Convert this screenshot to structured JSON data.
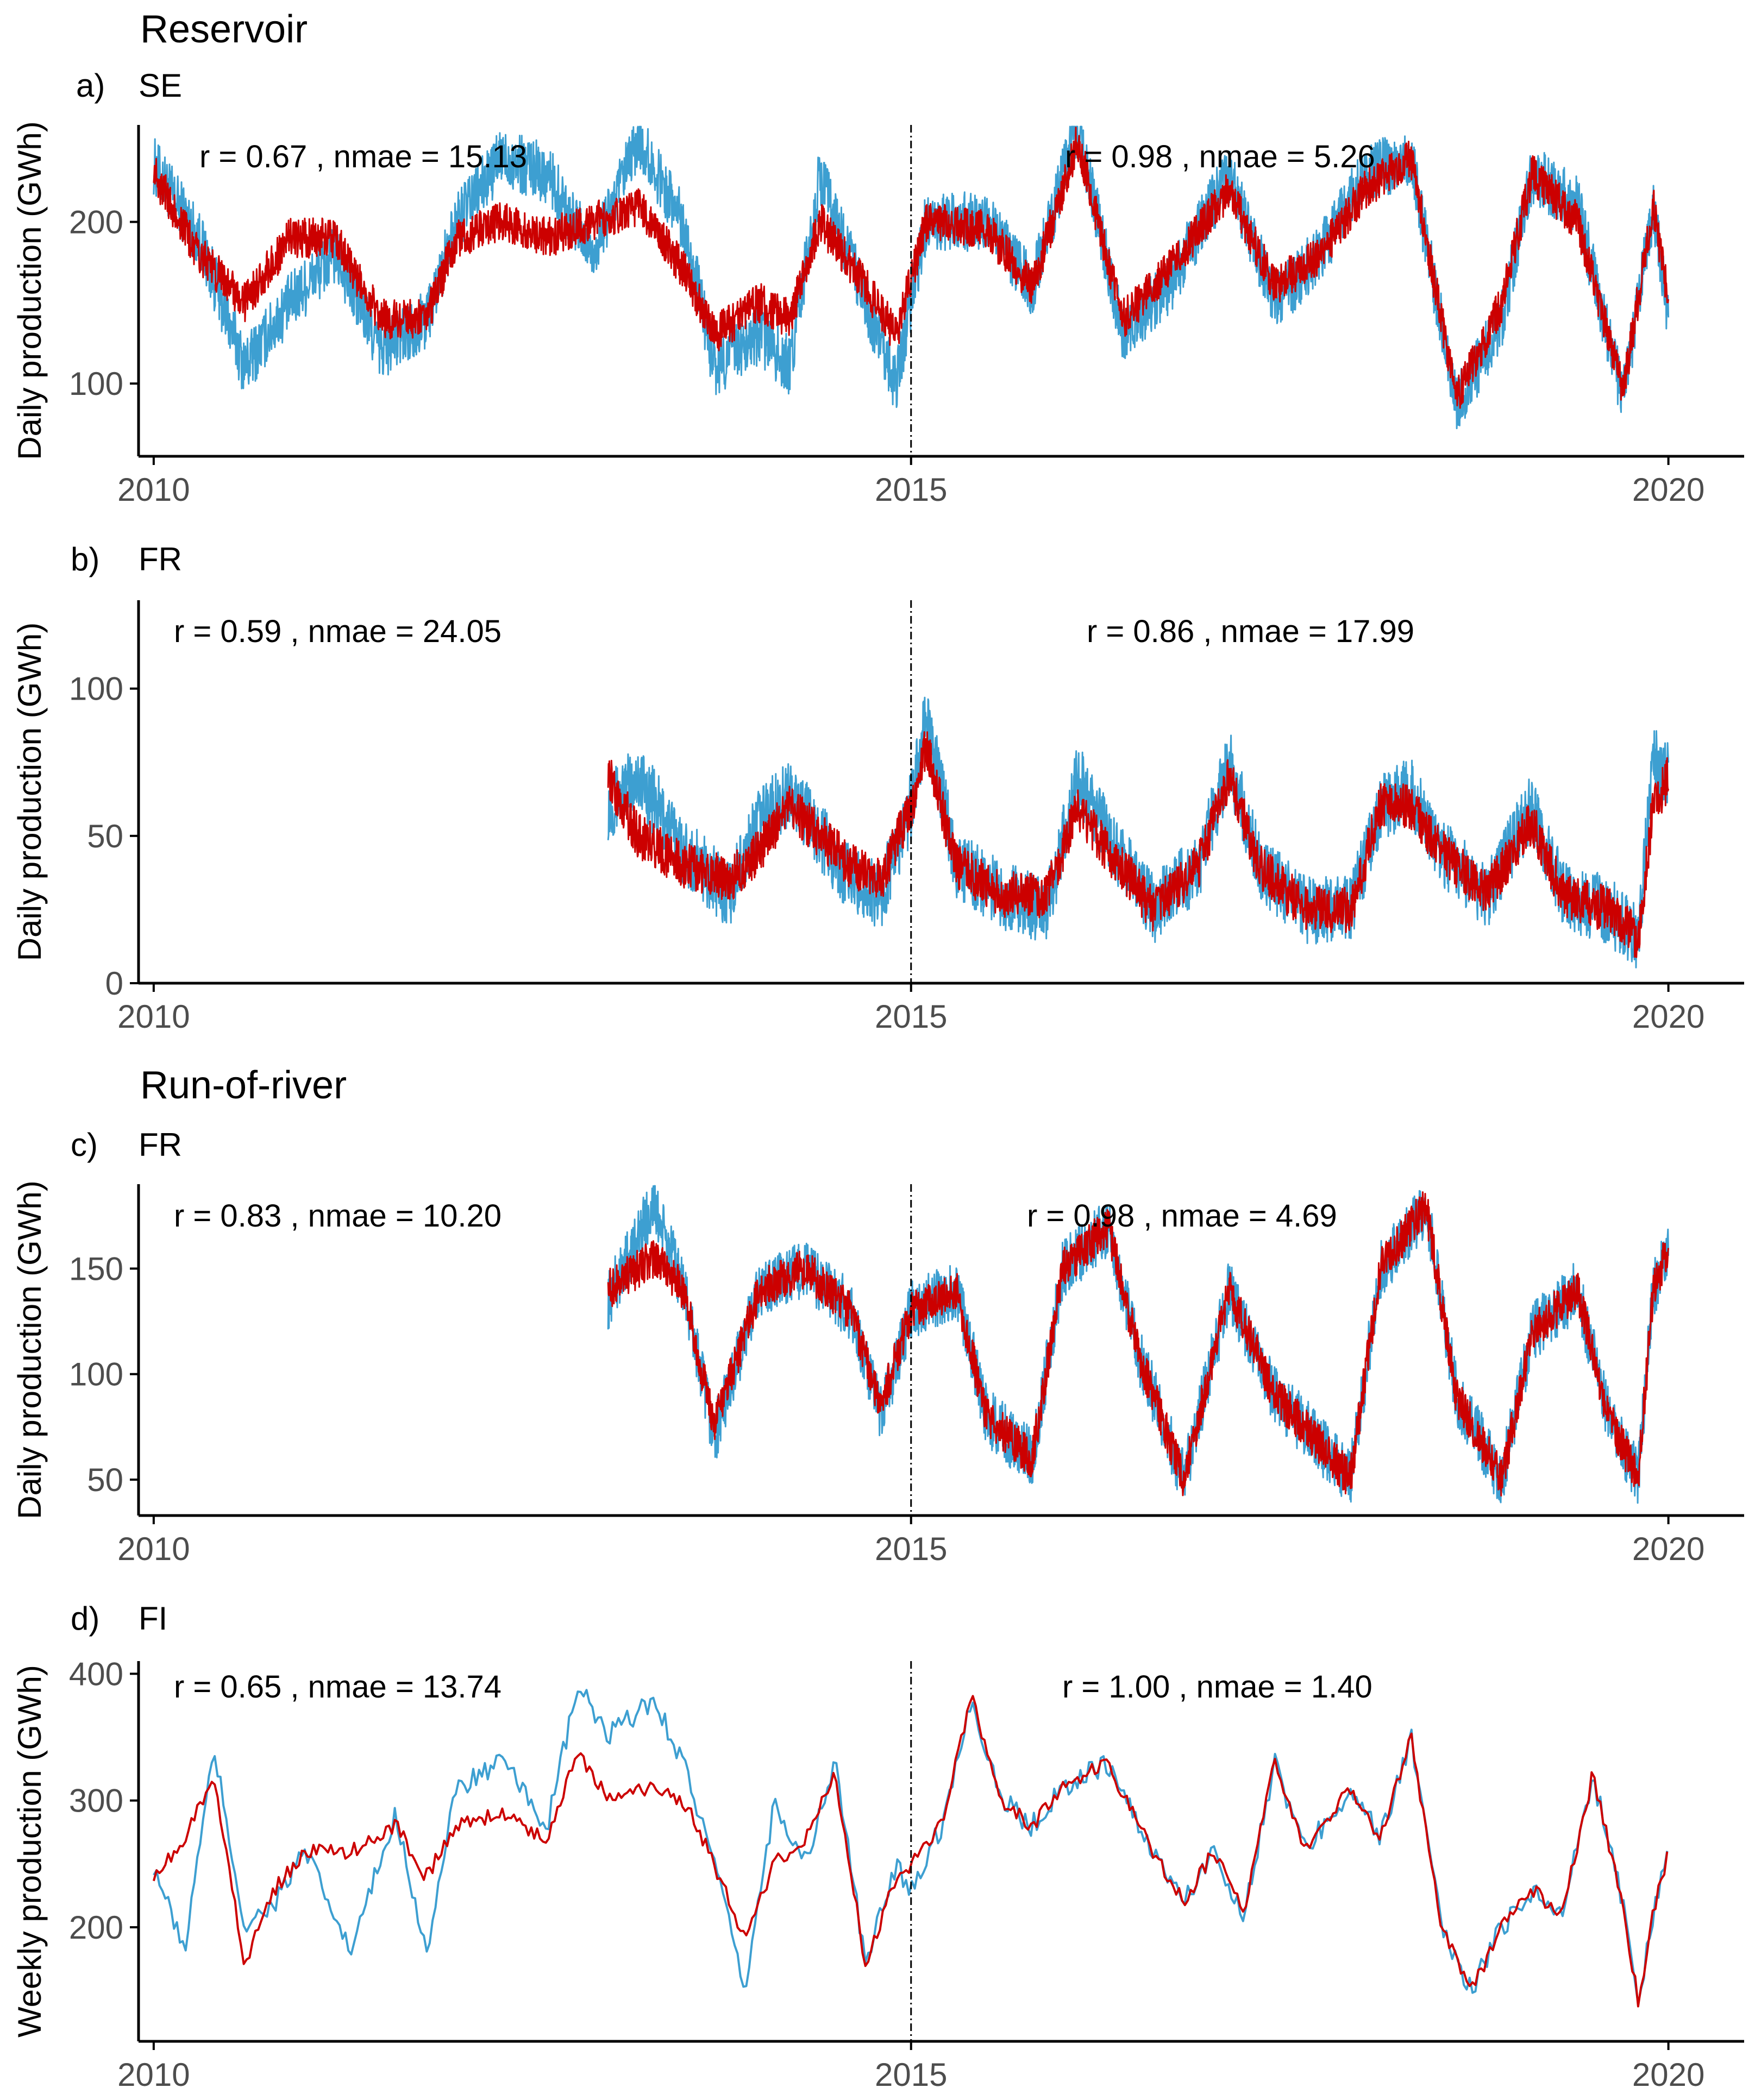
{
  "sections": {
    "reservoir": "Reservoir",
    "run_of_river": "Run-of-river"
  },
  "colors": {
    "observed": "#3d9fd1",
    "simulated": "#cc0000",
    "axis": "#000000",
    "tick_label": "#4d4d4d",
    "split_line": "#000000"
  },
  "chart_data": [
    {
      "type": "line",
      "panel_letter": "a)",
      "region": "SE",
      "ylabel": "Daily production (GWh)",
      "xlim": [
        2009.9,
        2020.5
      ],
      "ylim": [
        55,
        260
      ],
      "xticks": [
        2010,
        2015,
        2020
      ],
      "yticks": [
        100,
        200
      ],
      "split_x": 2015,
      "annotations": [
        "r = 0.67 , nmae = 15.13",
        "r = 0.98  , nmae = 5.26"
      ],
      "observed_anchors": [
        [
          2010.0,
          235
        ],
        [
          2010.3,
          190
        ],
        [
          2010.6,
          110
        ],
        [
          2010.9,
          150
        ],
        [
          2011.2,
          180
        ],
        [
          2011.5,
          120
        ],
        [
          2011.8,
          140
        ],
        [
          2012.0,
          200
        ],
        [
          2012.3,
          240
        ],
        [
          2012.6,
          230
        ],
        [
          2012.9,
          180
        ],
        [
          2013.2,
          250
        ],
        [
          2013.5,
          200
        ],
        [
          2013.7,
          110
        ],
        [
          2014.0,
          130
        ],
        [
          2014.2,
          110
        ],
        [
          2014.4,
          230
        ],
        [
          2014.7,
          150
        ],
        [
          2014.9,
          100
        ],
        [
          2015.1,
          200
        ],
        [
          2015.5,
          200
        ],
        [
          2015.8,
          160
        ],
        [
          2016.1,
          260
        ],
        [
          2016.4,
          130
        ],
        [
          2016.7,
          160
        ],
        [
          2017.1,
          230
        ],
        [
          2017.4,
          150
        ],
        [
          2017.7,
          180
        ],
        [
          2018.0,
          230
        ],
        [
          2018.3,
          240
        ],
        [
          2018.6,
          85
        ],
        [
          2018.9,
          140
        ],
        [
          2019.1,
          230
        ],
        [
          2019.4,
          210
        ],
        [
          2019.7,
          90
        ],
        [
          2019.9,
          210
        ],
        [
          2020.0,
          140
        ]
      ],
      "simulated_anchors": [
        [
          2010.0,
          230
        ],
        [
          2010.3,
          180
        ],
        [
          2010.6,
          150
        ],
        [
          2010.9,
          190
        ],
        [
          2011.2,
          190
        ],
        [
          2011.5,
          140
        ],
        [
          2011.8,
          140
        ],
        [
          2012.0,
          190
        ],
        [
          2012.3,
          200
        ],
        [
          2012.6,
          190
        ],
        [
          2012.9,
          200
        ],
        [
          2013.2,
          210
        ],
        [
          2013.5,
          170
        ],
        [
          2013.7,
          130
        ],
        [
          2014.0,
          150
        ],
        [
          2014.2,
          140
        ],
        [
          2014.4,
          200
        ],
        [
          2014.7,
          160
        ],
        [
          2014.9,
          130
        ],
        [
          2015.1,
          200
        ],
        [
          2015.5,
          195
        ],
        [
          2015.8,
          160
        ],
        [
          2016.1,
          250
        ],
        [
          2016.4,
          140
        ],
        [
          2016.7,
          170
        ],
        [
          2017.1,
          220
        ],
        [
          2017.4,
          160
        ],
        [
          2017.7,
          180
        ],
        [
          2018.0,
          220
        ],
        [
          2018.3,
          240
        ],
        [
          2018.6,
          90
        ],
        [
          2018.9,
          150
        ],
        [
          2019.1,
          230
        ],
        [
          2019.4,
          200
        ],
        [
          2019.7,
          95
        ],
        [
          2019.9,
          210
        ],
        [
          2020.0,
          150
        ]
      ]
    },
    {
      "type": "line",
      "panel_letter": "b)",
      "region": "FR",
      "ylabel": "Daily production (GWh)",
      "xlim": [
        2009.9,
        2020.5
      ],
      "ylim": [
        0,
        130
      ],
      "xticks": [
        2010,
        2015,
        2020
      ],
      "yticks": [
        0,
        50,
        100
      ],
      "split_x": 2015,
      "annotations": [
        "r = 0.59 , nmae = 24.05",
        "r = 0.86     , nmae = 17.99"
      ],
      "observed_anchors": [
        [
          2013.0,
          60
        ],
        [
          2013.2,
          70
        ],
        [
          2013.5,
          45
        ],
        [
          2013.8,
          30
        ],
        [
          2014.0,
          55
        ],
        [
          2014.2,
          65
        ],
        [
          2014.4,
          50
        ],
        [
          2014.6,
          35
        ],
        [
          2014.8,
          30
        ],
        [
          2015.0,
          60
        ],
        [
          2015.1,
          90
        ],
        [
          2015.3,
          40
        ],
        [
          2015.6,
          30
        ],
        [
          2015.9,
          25
        ],
        [
          2016.1,
          70
        ],
        [
          2016.3,
          50
        ],
        [
          2016.6,
          25
        ],
        [
          2016.9,
          40
        ],
        [
          2017.1,
          75
        ],
        [
          2017.3,
          40
        ],
        [
          2017.6,
          25
        ],
        [
          2017.9,
          25
        ],
        [
          2018.1,
          60
        ],
        [
          2018.3,
          65
        ],
        [
          2018.5,
          45
        ],
        [
          2018.8,
          30
        ],
        [
          2019.1,
          60
        ],
        [
          2019.3,
          30
        ],
        [
          2019.6,
          25
        ],
        [
          2019.8,
          15
        ],
        [
          2019.9,
          75
        ],
        [
          2020.0,
          70
        ]
      ],
      "simulated_anchors": [
        [
          2013.0,
          70
        ],
        [
          2013.2,
          50
        ],
        [
          2013.5,
          40
        ],
        [
          2013.8,
          35
        ],
        [
          2014.0,
          45
        ],
        [
          2014.2,
          60
        ],
        [
          2014.4,
          50
        ],
        [
          2014.6,
          40
        ],
        [
          2014.8,
          35
        ],
        [
          2015.0,
          60
        ],
        [
          2015.1,
          80
        ],
        [
          2015.3,
          40
        ],
        [
          2015.6,
          30
        ],
        [
          2015.9,
          30
        ],
        [
          2016.1,
          60
        ],
        [
          2016.3,
          45
        ],
        [
          2016.6,
          25
        ],
        [
          2016.9,
          40
        ],
        [
          2017.1,
          70
        ],
        [
          2017.3,
          40
        ],
        [
          2017.6,
          25
        ],
        [
          2017.9,
          25
        ],
        [
          2018.1,
          60
        ],
        [
          2018.3,
          60
        ],
        [
          2018.5,
          45
        ],
        [
          2018.8,
          30
        ],
        [
          2019.1,
          55
        ],
        [
          2019.3,
          30
        ],
        [
          2019.6,
          25
        ],
        [
          2019.8,
          15
        ],
        [
          2019.9,
          60
        ],
        [
          2020.0,
          70
        ]
      ]
    },
    {
      "type": "line",
      "panel_letter": "c)",
      "region": "FR",
      "ylabel": "Daily production (GWh)",
      "xlim": [
        2009.9,
        2020.5
      ],
      "ylim": [
        33,
        190
      ],
      "xticks": [
        2010,
        2015,
        2020
      ],
      "yticks": [
        50,
        100,
        150
      ],
      "split_x": 2015,
      "annotations": [
        "r = 0.83 , nmae = 10.20",
        "r = 0.98 , nmae = 4.69"
      ],
      "observed_anchors": [
        [
          2013.0,
          135
        ],
        [
          2013.3,
          180
        ],
        [
          2013.5,
          140
        ],
        [
          2013.7,
          70
        ],
        [
          2014.0,
          140
        ],
        [
          2014.3,
          150
        ],
        [
          2014.6,
          130
        ],
        [
          2014.8,
          80
        ],
        [
          2015.0,
          130
        ],
        [
          2015.3,
          140
        ],
        [
          2015.5,
          80
        ],
        [
          2015.8,
          60
        ],
        [
          2016.0,
          150
        ],
        [
          2016.3,
          170
        ],
        [
          2016.5,
          110
        ],
        [
          2016.8,
          50
        ],
        [
          2017.1,
          140
        ],
        [
          2017.4,
          90
        ],
        [
          2017.6,
          75
        ],
        [
          2017.9,
          50
        ],
        [
          2018.1,
          150
        ],
        [
          2018.4,
          180
        ],
        [
          2018.6,
          90
        ],
        [
          2018.9,
          50
        ],
        [
          2019.1,
          120
        ],
        [
          2019.4,
          140
        ],
        [
          2019.6,
          80
        ],
        [
          2019.8,
          50
        ],
        [
          2019.9,
          140
        ],
        [
          2020.0,
          160
        ]
      ],
      "simulated_anchors": [
        [
          2013.0,
          140
        ],
        [
          2013.3,
          155
        ],
        [
          2013.5,
          140
        ],
        [
          2013.7,
          75
        ],
        [
          2014.0,
          140
        ],
        [
          2014.3,
          150
        ],
        [
          2014.6,
          130
        ],
        [
          2014.8,
          85
        ],
        [
          2015.0,
          130
        ],
        [
          2015.3,
          140
        ],
        [
          2015.5,
          80
        ],
        [
          2015.8,
          60
        ],
        [
          2016.0,
          150
        ],
        [
          2016.3,
          170
        ],
        [
          2016.5,
          110
        ],
        [
          2016.8,
          50
        ],
        [
          2017.1,
          140
        ],
        [
          2017.4,
          90
        ],
        [
          2017.6,
          75
        ],
        [
          2017.9,
          50
        ],
        [
          2018.1,
          150
        ],
        [
          2018.4,
          180
        ],
        [
          2018.6,
          90
        ],
        [
          2018.9,
          50
        ],
        [
          2019.1,
          120
        ],
        [
          2019.4,
          140
        ],
        [
          2019.6,
          80
        ],
        [
          2019.8,
          50
        ],
        [
          2019.9,
          140
        ],
        [
          2020.0,
          160
        ]
      ]
    },
    {
      "type": "line",
      "panel_letter": "d)",
      "region": "FI",
      "ylabel": "Weekly production (GWh)",
      "xlim": [
        2009.9,
        2020.5
      ],
      "ylim": [
        110,
        410
      ],
      "xticks": [
        2010,
        2015,
        2020
      ],
      "yticks": [
        200,
        300,
        400
      ],
      "split_x": 2015,
      "annotations": [
        "r = 0.65 , nmae = 13.74",
        "r = 1.00  , nmae = 1.40"
      ],
      "observed_anchors": [
        [
          2010.0,
          250
        ],
        [
          2010.2,
          180
        ],
        [
          2010.4,
          340
        ],
        [
          2010.6,
          200
        ],
        [
          2010.8,
          220
        ],
        [
          2011.0,
          260
        ],
        [
          2011.3,
          180
        ],
        [
          2011.6,
          290
        ],
        [
          2011.8,
          180
        ],
        [
          2012.0,
          310
        ],
        [
          2012.3,
          330
        ],
        [
          2012.6,
          280
        ],
        [
          2012.8,
          390
        ],
        [
          2013.0,
          350
        ],
        [
          2013.3,
          380
        ],
        [
          2013.5,
          330
        ],
        [
          2013.7,
          250
        ],
        [
          2013.9,
          150
        ],
        [
          2014.1,
          300
        ],
        [
          2014.3,
          250
        ],
        [
          2014.5,
          330
        ],
        [
          2014.7,
          170
        ],
        [
          2014.9,
          250
        ],
        [
          2015.0,
          230
        ],
        [
          2015.2,
          280
        ],
        [
          2015.4,
          380
        ],
        [
          2015.6,
          300
        ],
        [
          2015.8,
          280
        ],
        [
          2016.0,
          310
        ],
        [
          2016.3,
          330
        ],
        [
          2016.5,
          280
        ],
        [
          2016.8,
          220
        ],
        [
          2017.0,
          260
        ],
        [
          2017.2,
          210
        ],
        [
          2017.4,
          330
        ],
        [
          2017.6,
          260
        ],
        [
          2017.9,
          310
        ],
        [
          2018.1,
          270
        ],
        [
          2018.3,
          350
        ],
        [
          2018.5,
          200
        ],
        [
          2018.7,
          150
        ],
        [
          2018.9,
          200
        ],
        [
          2019.1,
          230
        ],
        [
          2019.3,
          210
        ],
        [
          2019.5,
          320
        ],
        [
          2019.7,
          220
        ],
        [
          2019.8,
          140
        ],
        [
          2019.9,
          210
        ],
        [
          2020.0,
          260
        ]
      ],
      "simulated_anchors": [
        [
          2010.0,
          240
        ],
        [
          2010.2,
          270
        ],
        [
          2010.4,
          320
        ],
        [
          2010.6,
          170
        ],
        [
          2010.8,
          230
        ],
        [
          2011.0,
          260
        ],
        [
          2011.3,
          260
        ],
        [
          2011.6,
          280
        ],
        [
          2011.8,
          240
        ],
        [
          2012.0,
          280
        ],
        [
          2012.3,
          290
        ],
        [
          2012.6,
          270
        ],
        [
          2012.8,
          340
        ],
        [
          2013.0,
          300
        ],
        [
          2013.3,
          310
        ],
        [
          2013.5,
          300
        ],
        [
          2013.7,
          250
        ],
        [
          2013.9,
          190
        ],
        [
          2014.1,
          250
        ],
        [
          2014.3,
          270
        ],
        [
          2014.5,
          320
        ],
        [
          2014.7,
          170
        ],
        [
          2014.9,
          240
        ],
        [
          2015.0,
          250
        ],
        [
          2015.2,
          280
        ],
        [
          2015.4,
          380
        ],
        [
          2015.6,
          300
        ],
        [
          2015.8,
          280
        ],
        [
          2016.0,
          310
        ],
        [
          2016.3,
          330
        ],
        [
          2016.5,
          280
        ],
        [
          2016.8,
          220
        ],
        [
          2017.0,
          260
        ],
        [
          2017.2,
          210
        ],
        [
          2017.4,
          330
        ],
        [
          2017.6,
          260
        ],
        [
          2017.9,
          310
        ],
        [
          2018.1,
          270
        ],
        [
          2018.3,
          350
        ],
        [
          2018.5,
          200
        ],
        [
          2018.7,
          150
        ],
        [
          2018.9,
          200
        ],
        [
          2019.1,
          230
        ],
        [
          2019.3,
          210
        ],
        [
          2019.5,
          320
        ],
        [
          2019.7,
          220
        ],
        [
          2019.8,
          140
        ],
        [
          2019.9,
          210
        ],
        [
          2020.0,
          260
        ]
      ]
    }
  ]
}
